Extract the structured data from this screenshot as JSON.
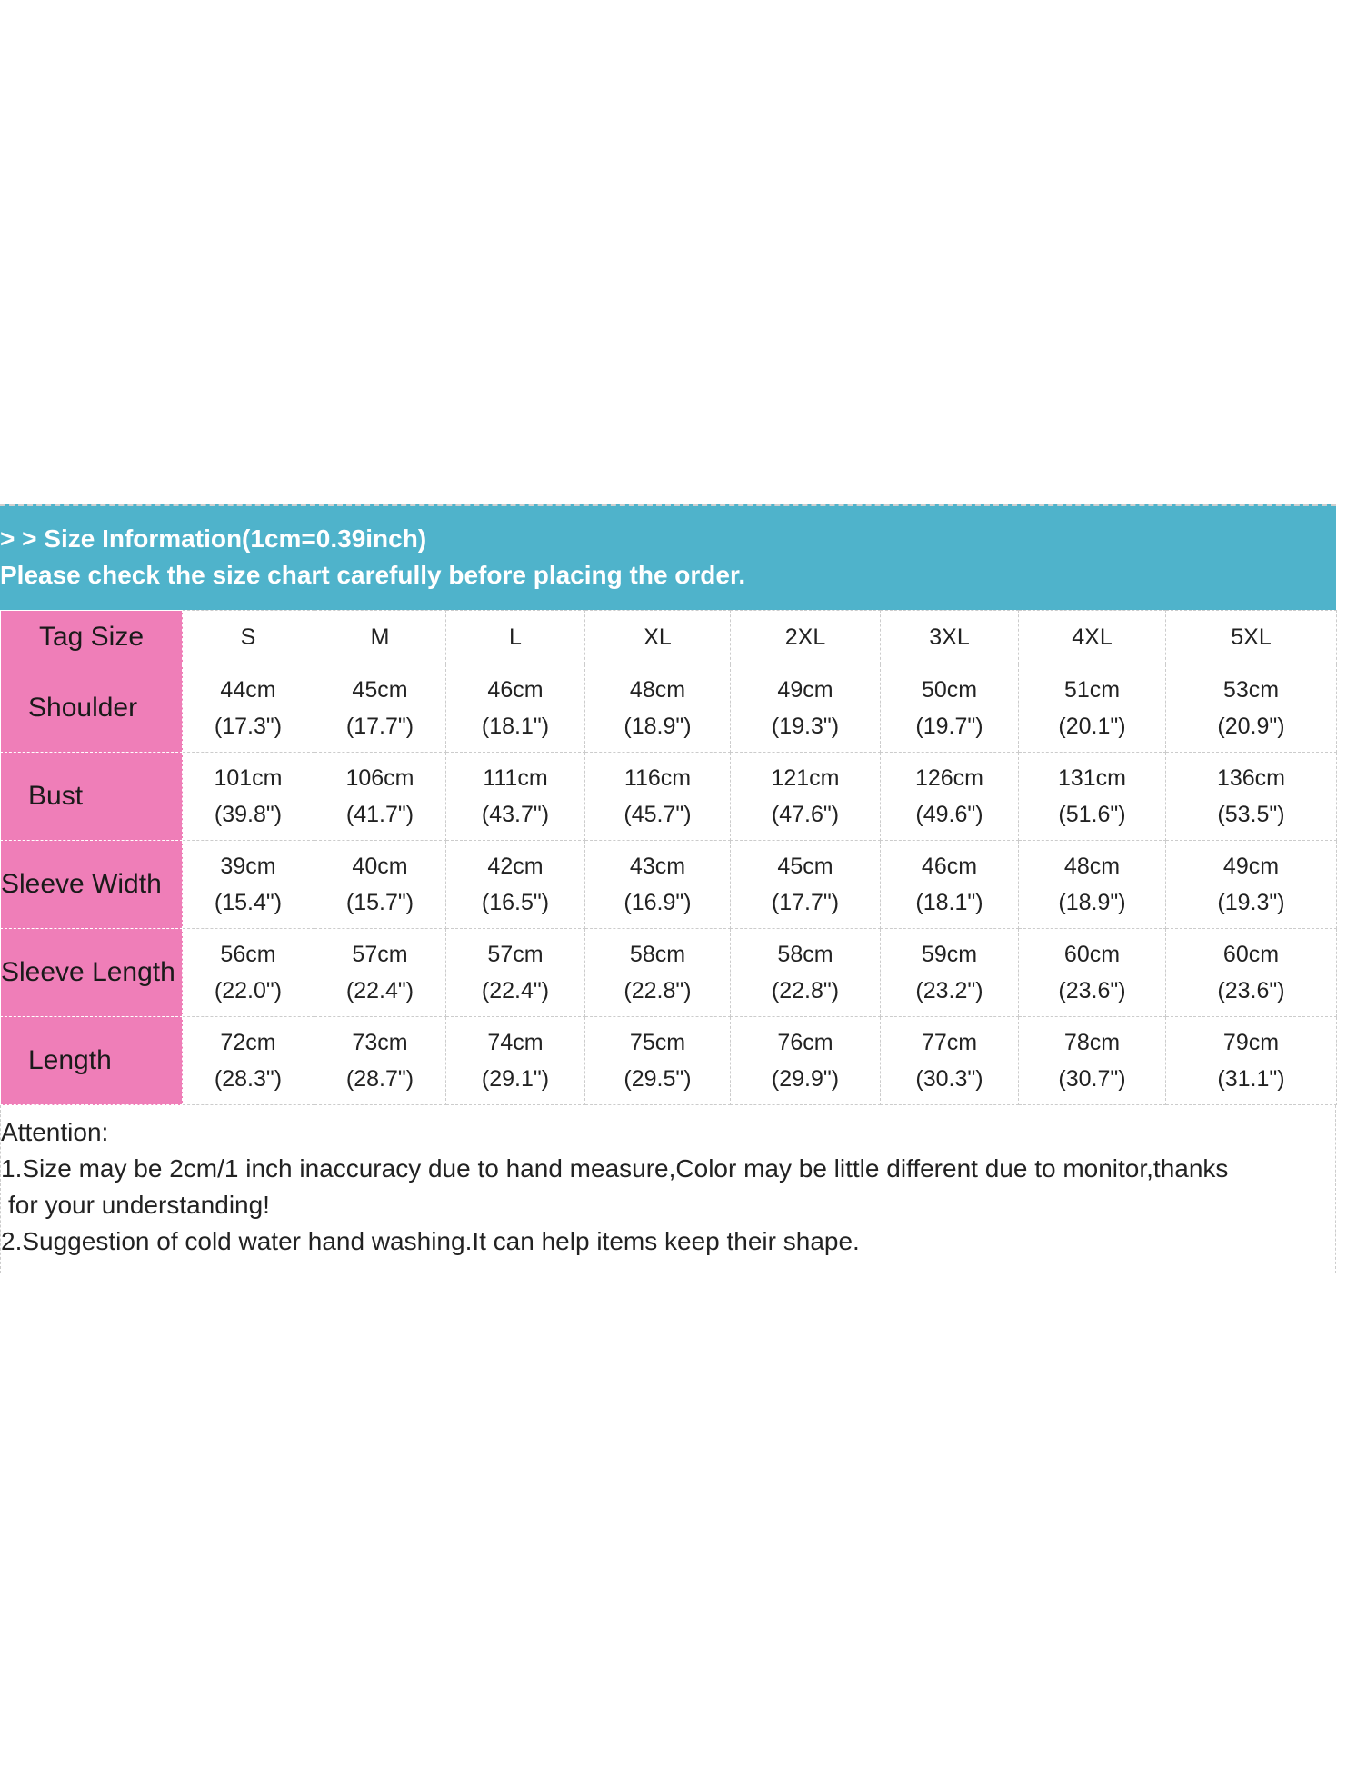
{
  "banner": {
    "line1": "> > Size Information(1cm=0.39inch)",
    "line2": "Please check the size chart carefully before placing the order."
  },
  "colors": {
    "banner_bg": "#4fb3cb",
    "row_header_bg": "#ef7eb8"
  },
  "table": {
    "header_label": "Tag Size",
    "sizes": [
      "S",
      "M",
      "L",
      "XL",
      "2XL",
      "3XL",
      "4XL",
      "5XL"
    ],
    "rows": [
      {
        "label": "Shoulder",
        "cm": [
          "44cm",
          "45cm",
          "46cm",
          "48cm",
          "49cm",
          "50cm",
          "51cm",
          "53cm"
        ],
        "inch": [
          "(17.3\")",
          "(17.7\")",
          "(18.1\")",
          "(18.9\")",
          "(19.3\")",
          "(19.7\")",
          "(20.1\")",
          "(20.9\")"
        ]
      },
      {
        "label": "Bust",
        "cm": [
          "101cm",
          "106cm",
          "111cm",
          "116cm",
          "121cm",
          "126cm",
          "131cm",
          "136cm"
        ],
        "inch": [
          "(39.8\")",
          "(41.7\")",
          "(43.7\")",
          "(45.7\")",
          "(47.6\")",
          "(49.6\")",
          "(51.6\")",
          "(53.5\")"
        ]
      },
      {
        "label": "Sleeve Width",
        "cm": [
          "39cm",
          "40cm",
          "42cm",
          "43cm",
          "45cm",
          "46cm",
          "48cm",
          "49cm"
        ],
        "inch": [
          "(15.4\")",
          "(15.7\")",
          "(16.5\")",
          "(16.9\")",
          "(17.7\")",
          "(18.1\")",
          "(18.9\")",
          "(19.3\")"
        ]
      },
      {
        "label": "Sleeve Length",
        "cm": [
          "56cm",
          "57cm",
          "57cm",
          "58cm",
          "58cm",
          "59cm",
          "60cm",
          "60cm"
        ],
        "inch": [
          "(22.0\")",
          "(22.4\")",
          "(22.4\")",
          "(22.8\")",
          "(22.8\")",
          "(23.2\")",
          "(23.6\")",
          "(23.6\")"
        ]
      },
      {
        "label": "Length",
        "cm": [
          "72cm",
          "73cm",
          "74cm",
          "75cm",
          "76cm",
          "77cm",
          "78cm",
          "79cm"
        ],
        "inch": [
          "(28.3\")",
          "(28.7\")",
          "(29.1\")",
          "(29.5\")",
          "(29.9\")",
          "(30.3\")",
          "(30.7\")",
          "(31.1\")"
        ]
      }
    ]
  },
  "notes": {
    "title": "Attention:",
    "line1": "1.Size may be 2cm/1  inch inaccuracy due to hand measure,Color may be little different due to monitor,thanks",
    "line1_cont": "for your understanding!",
    "line2": "2.Suggestion of cold water hand washing.It  can help items keep their shape."
  }
}
